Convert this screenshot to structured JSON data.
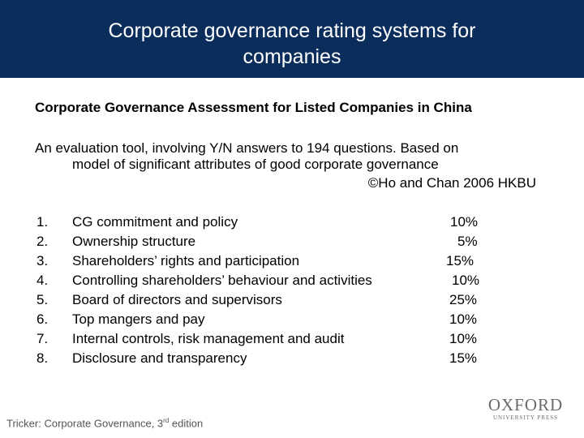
{
  "slide": {
    "title_line1": "Corporate governance rating systems for",
    "title_line2": "companies",
    "subtitle": "Corporate Governance Assessment for Listed Companies in China",
    "description_line1": "An evaluation tool, involving Y/N answers to 194 questions.  Based on",
    "description_line2": "model of significant attributes of good corporate governance",
    "credit": "©Ho and Chan 2006  HKBU",
    "items": [
      {
        "num": "1.",
        "label": "CG commitment and policy",
        "weight": "10%"
      },
      {
        "num": "2.",
        "label": "Ownership structure",
        "weight": "5%"
      },
      {
        "num": "3.",
        "label": "Shareholders’ rights and participation",
        "weight": "15%"
      },
      {
        "num": "4.",
        "label": "Controlling shareholders’ behaviour and activities",
        "weight": "10%"
      },
      {
        "num": "5.",
        "label": "Board of directors and supervisors",
        "weight": "25%"
      },
      {
        "num": "6.",
        "label": "Top mangers and pay",
        "weight": "10%"
      },
      {
        "num": "7.",
        "label": "Internal controls, risk management and audit",
        "weight": "10%"
      },
      {
        "num": "8.",
        "label": "Disclosure and transparency",
        "weight": "15%"
      }
    ],
    "footer_main": "Tricker: Corporate Governance, 3",
    "footer_sup": "rd",
    "footer_end": " edition",
    "logo_main": "OXFORD",
    "logo_sub": "UNIVERSITY PRESS"
  }
}
